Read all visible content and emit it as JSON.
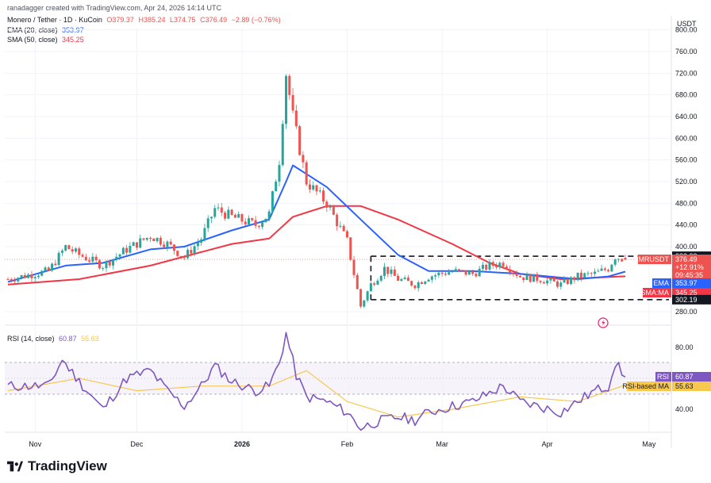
{
  "header": {
    "credit": "ranadagger created with TradingView.com, Apr 24, 2026 14:14 UTC",
    "symbol_line": "Monero / Tether · 1D · KuCoin",
    "ohlc": {
      "o": "O379.37",
      "h": "H385.24",
      "l": "L374.75",
      "c": "C376.49",
      "chg": "−2.89 (−0.76%)"
    },
    "ema_label": "EMA (20, close)",
    "ema_value": "353.97",
    "sma_label": "SMA (50, close)",
    "sma_value": "345.25",
    "rsi_label": "RSI (14, close)",
    "rsi_value": "60.87",
    "rsi_ma_value": "55.63"
  },
  "axis": {
    "currency": "USDT",
    "price_ticks": [
      "800.00",
      "760.00",
      "720.00",
      "680.00",
      "640.00",
      "600.00",
      "560.00",
      "520.00",
      "480.00",
      "440.00",
      "400.00",
      "280.00"
    ],
    "rsi_ticks": [
      "80.00",
      "40.00"
    ],
    "x_ticks": [
      "Nov",
      "Dec",
      "2026",
      "Feb",
      "Mar",
      "Apr",
      "May"
    ]
  },
  "labels": {
    "resistance": "382.33",
    "symbol": "XMRUSDT",
    "last_price": "376.49",
    "change": "+12.91%",
    "countdown": "09:45:35",
    "ema_tag": "EMA",
    "ema_val": "353.97",
    "sma_tag": "SMA:MA",
    "sma_val": "345.25",
    "support": "302.19",
    "rsi_tag": "RSI",
    "rsi_val": "60.87",
    "rsi_ma_tag": "RSI-based MA",
    "rsi_ma_val": "55.63"
  },
  "colors": {
    "up": "#26a69a",
    "down": "#ef5350",
    "ema": "#2962ff",
    "sma": "#f23645",
    "rsi": "#7e57c2",
    "rsi_ma": "#f7c850",
    "dark": "#131722"
  },
  "footer": {
    "brand": "TradingView"
  },
  "chart_data": {
    "type": "candlestick",
    "symbol": "XMRUSDT",
    "timeframe": "1D",
    "x_range": [
      "2025-10-24",
      "2026-04-24"
    ],
    "y_range": [
      265,
      800
    ],
    "horizontal_levels": [
      382.33,
      302.19
    ],
    "price_path": [
      {
        "date": "2025-10-24",
        "close": 340
      },
      {
        "date": "2025-11-05",
        "close": 355
      },
      {
        "date": "2025-11-10",
        "close": 400
      },
      {
        "date": "2025-11-14",
        "close": 385
      },
      {
        "date": "2025-11-21",
        "close": 365
      },
      {
        "date": "2025-11-28",
        "close": 395
      },
      {
        "date": "2025-12-05",
        "close": 420
      },
      {
        "date": "2025-12-10",
        "close": 405
      },
      {
        "date": "2025-12-15",
        "close": 380
      },
      {
        "date": "2025-12-20",
        "close": 415
      },
      {
        "date": "2025-12-24",
        "close": 470
      },
      {
        "date": "2025-12-29",
        "close": 455
      },
      {
        "date": "2026-01-05",
        "close": 440
      },
      {
        "date": "2026-01-09",
        "close": 460
      },
      {
        "date": "2026-01-12",
        "close": 560
      },
      {
        "date": "2026-01-14",
        "close": 720
      },
      {
        "date": "2026-01-16",
        "close": 640
      },
      {
        "date": "2026-01-20",
        "close": 520
      },
      {
        "date": "2026-01-26",
        "close": 480
      },
      {
        "date": "2026-02-01",
        "close": 410
      },
      {
        "date": "2026-02-05",
        "close": 290
      },
      {
        "date": "2026-02-08",
        "close": 330
      },
      {
        "date": "2026-02-12",
        "close": 360
      },
      {
        "date": "2026-02-16",
        "close": 340
      },
      {
        "date": "2026-02-21",
        "close": 330
      },
      {
        "date": "2026-02-25",
        "close": 345
      },
      {
        "date": "2026-03-04",
        "close": 355
      },
      {
        "date": "2026-03-10",
        "close": 350
      },
      {
        "date": "2026-03-15",
        "close": 365
      },
      {
        "date": "2026-03-19",
        "close": 370
      },
      {
        "date": "2026-03-24",
        "close": 345
      },
      {
        "date": "2026-03-30",
        "close": 340
      },
      {
        "date": "2026-04-05",
        "close": 330
      },
      {
        "date": "2026-04-10",
        "close": 345
      },
      {
        "date": "2026-04-15",
        "close": 350
      },
      {
        "date": "2026-04-19",
        "close": 360
      },
      {
        "date": "2026-04-21",
        "close": 382
      },
      {
        "date": "2026-04-24",
        "close": 376.49
      }
    ],
    "ema20": [
      {
        "date": "2025-10-24",
        "v": 335
      },
      {
        "date": "2025-11-10",
        "v": 365
      },
      {
        "date": "2025-11-21",
        "v": 370
      },
      {
        "date": "2025-12-05",
        "v": 395
      },
      {
        "date": "2025-12-15",
        "v": 400
      },
      {
        "date": "2025-12-29",
        "v": 430
      },
      {
        "date": "2026-01-09",
        "v": 450
      },
      {
        "date": "2026-01-14",
        "v": 520
      },
      {
        "date": "2026-01-16",
        "v": 550
      },
      {
        "date": "2026-01-26",
        "v": 510
      },
      {
        "date": "2026-02-05",
        "v": 450
      },
      {
        "date": "2026-02-16",
        "v": 385
      },
      {
        "date": "2026-02-25",
        "v": 355
      },
      {
        "date": "2026-03-10",
        "v": 355
      },
      {
        "date": "2026-03-24",
        "v": 350
      },
      {
        "date": "2026-04-10",
        "v": 340
      },
      {
        "date": "2026-04-19",
        "v": 345
      },
      {
        "date": "2026-04-24",
        "v": 353.97
      }
    ],
    "sma50": [
      {
        "date": "2025-10-24",
        "v": 330
      },
      {
        "date": "2025-11-14",
        "v": 340
      },
      {
        "date": "2025-12-05",
        "v": 365
      },
      {
        "date": "2025-12-29",
        "v": 405
      },
      {
        "date": "2026-01-09",
        "v": 415
      },
      {
        "date": "2026-01-16",
        "v": 455
      },
      {
        "date": "2026-01-26",
        "v": 475
      },
      {
        "date": "2026-02-05",
        "v": 475
      },
      {
        "date": "2026-02-16",
        "v": 450
      },
      {
        "date": "2026-03-04",
        "v": 405
      },
      {
        "date": "2026-03-15",
        "v": 370
      },
      {
        "date": "2026-03-24",
        "v": 350
      },
      {
        "date": "2026-04-05",
        "v": 340
      },
      {
        "date": "2026-04-24",
        "v": 345.25
      }
    ],
    "rsi14": [
      {
        "date": "2025-10-24",
        "v": 55
      },
      {
        "date": "2025-11-05",
        "v": 55
      },
      {
        "date": "2025-11-09",
        "v": 72
      },
      {
        "date": "2025-11-14",
        "v": 58
      },
      {
        "date": "2025-11-21",
        "v": 40
      },
      {
        "date": "2025-11-28",
        "v": 60
      },
      {
        "date": "2025-12-05",
        "v": 65
      },
      {
        "date": "2025-12-10",
        "v": 52
      },
      {
        "date": "2025-12-15",
        "v": 42
      },
      {
        "date": "2025-12-20",
        "v": 55
      },
      {
        "date": "2025-12-24",
        "v": 68
      },
      {
        "date": "2025-12-29",
        "v": 58
      },
      {
        "date": "2026-01-05",
        "v": 52
      },
      {
        "date": "2026-01-09",
        "v": 55
      },
      {
        "date": "2026-01-12",
        "v": 70
      },
      {
        "date": "2026-01-14",
        "v": 89
      },
      {
        "date": "2026-01-17",
        "v": 62
      },
      {
        "date": "2026-01-20",
        "v": 48
      },
      {
        "date": "2026-01-26",
        "v": 45
      },
      {
        "date": "2026-02-01",
        "v": 38
      },
      {
        "date": "2026-02-05",
        "v": 28
      },
      {
        "date": "2026-02-10",
        "v": 32
      },
      {
        "date": "2026-02-16",
        "v": 35
      },
      {
        "date": "2026-02-21",
        "v": 33
      },
      {
        "date": "2026-02-25",
        "v": 38
      },
      {
        "date": "2026-03-04",
        "v": 42
      },
      {
        "date": "2026-03-10",
        "v": 45
      },
      {
        "date": "2026-03-19",
        "v": 55
      },
      {
        "date": "2026-03-24",
        "v": 45
      },
      {
        "date": "2026-04-05",
        "v": 38
      },
      {
        "date": "2026-04-10",
        "v": 45
      },
      {
        "date": "2026-04-15",
        "v": 52
      },
      {
        "date": "2026-04-19",
        "v": 55
      },
      {
        "date": "2026-04-21",
        "v": 70
      },
      {
        "date": "2026-04-24",
        "v": 60.87
      }
    ],
    "rsi_ma": [
      {
        "date": "2025-10-24",
        "v": 52
      },
      {
        "date": "2025-11-14",
        "v": 60
      },
      {
        "date": "2025-12-01",
        "v": 52
      },
      {
        "date": "2025-12-20",
        "v": 55
      },
      {
        "date": "2026-01-09",
        "v": 55
      },
      {
        "date": "2026-01-20",
        "v": 65
      },
      {
        "date": "2026-02-01",
        "v": 45
      },
      {
        "date": "2026-02-16",
        "v": 35
      },
      {
        "date": "2026-03-04",
        "v": 40
      },
      {
        "date": "2026-03-24",
        "v": 48
      },
      {
        "date": "2026-04-10",
        "v": 45
      },
      {
        "date": "2026-04-24",
        "v": 55.63
      }
    ],
    "rsi_range": [
      20,
      95
    ],
    "rsi_bands": [
      70,
      30
    ]
  }
}
